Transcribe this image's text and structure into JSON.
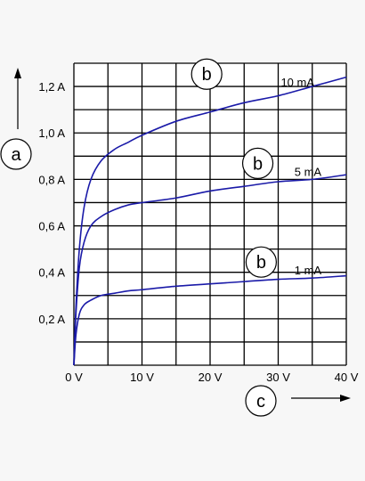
{
  "chart_data": {
    "type": "line",
    "xlabel": "c",
    "ylabel": "a",
    "xlim": [
      0,
      40
    ],
    "ylim": [
      0,
      1.3
    ],
    "grid": true,
    "x_ticks": [
      {
        "v": 0,
        "label": "0 V"
      },
      {
        "v": 10,
        "label": "10 V"
      },
      {
        "v": 20,
        "label": "20 V"
      },
      {
        "v": 30,
        "label": "30 V"
      },
      {
        "v": 40,
        "label": "40 V"
      }
    ],
    "y_ticks": [
      {
        "v": 0.2,
        "label": "0,2 A"
      },
      {
        "v": 0.4,
        "label": "0,4 A"
      },
      {
        "v": 0.6,
        "label": "0,6 A"
      },
      {
        "v": 0.8,
        "label": "0,8 A"
      },
      {
        "v": 1.0,
        "label": "1,0 A"
      },
      {
        "v": 1.2,
        "label": "1,2 A"
      }
    ],
    "series_marker": "b",
    "series": [
      {
        "name": "10 mA",
        "x": [
          0,
          0.3,
          0.8,
          1.5,
          2.5,
          4,
          6,
          8,
          10,
          15,
          20,
          25,
          30,
          35,
          40
        ],
        "y": [
          0,
          0.25,
          0.5,
          0.68,
          0.8,
          0.88,
          0.93,
          0.96,
          0.99,
          1.05,
          1.09,
          1.13,
          1.16,
          1.2,
          1.24
        ]
      },
      {
        "name": "5 mA",
        "x": [
          0,
          0.3,
          0.8,
          1.5,
          2.5,
          4,
          6,
          8,
          10,
          15,
          20,
          25,
          30,
          35,
          40
        ],
        "y": [
          0,
          0.22,
          0.42,
          0.53,
          0.6,
          0.64,
          0.67,
          0.69,
          0.7,
          0.72,
          0.75,
          0.77,
          0.79,
          0.8,
          0.82
        ]
      },
      {
        "name": "1 mA",
        "x": [
          0,
          0.3,
          0.8,
          1.5,
          2.5,
          4,
          6,
          8,
          10,
          15,
          20,
          25,
          30,
          35,
          40
        ],
        "y": [
          0,
          0.13,
          0.22,
          0.26,
          0.28,
          0.3,
          0.31,
          0.32,
          0.325,
          0.34,
          0.35,
          0.36,
          0.37,
          0.375,
          0.385
        ]
      }
    ],
    "colors": {
      "curve": "#1a1aa8",
      "grid": "#000000"
    }
  }
}
